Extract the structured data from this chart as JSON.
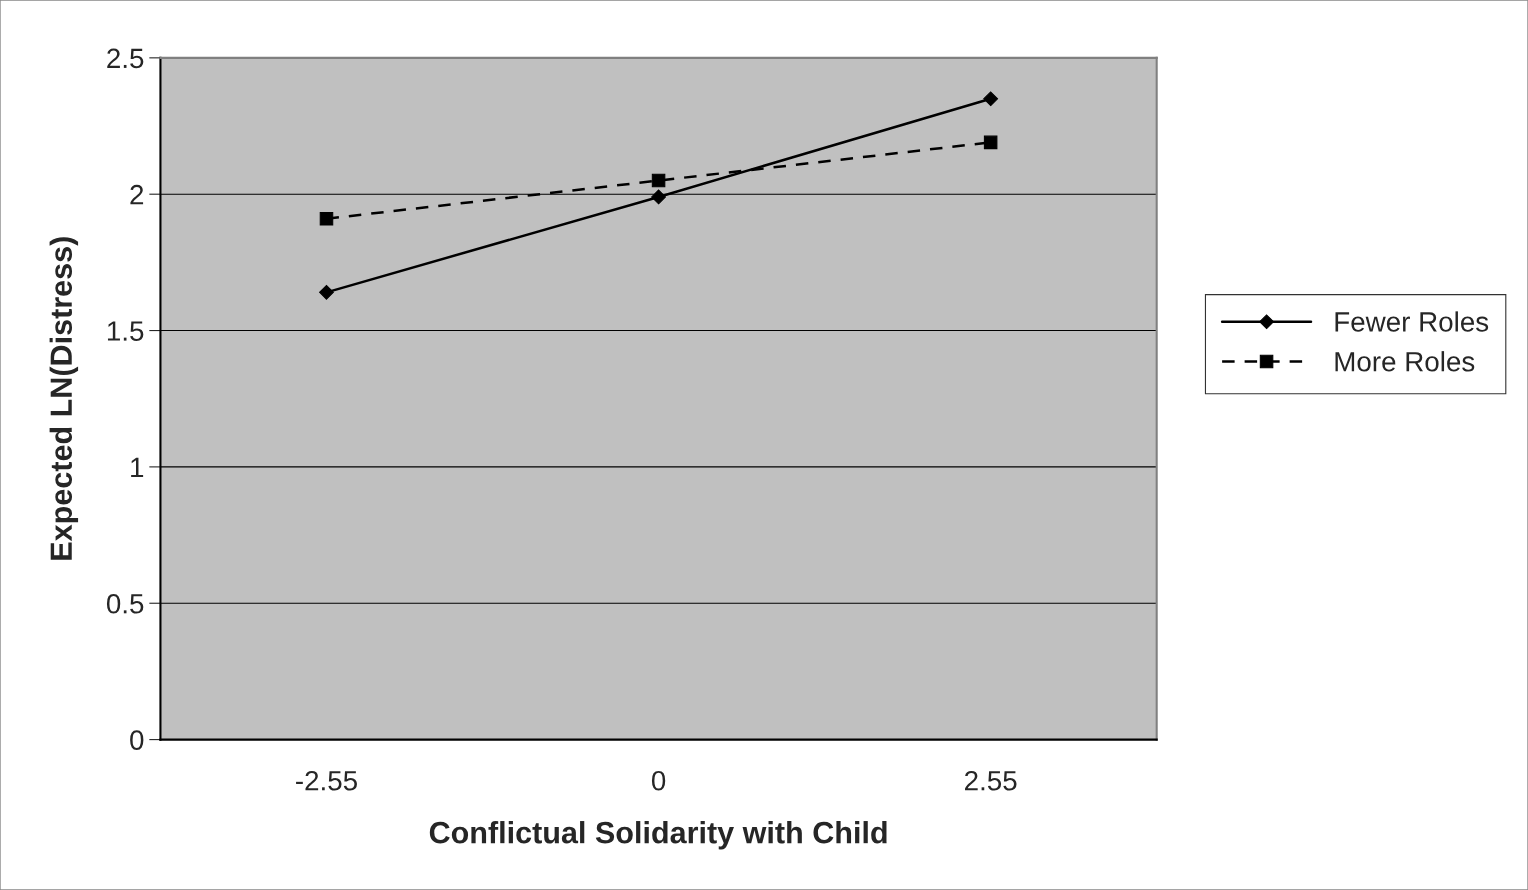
{
  "chart_data": {
    "type": "line",
    "xlabel": "Conflictual Solidarity with Child",
    "ylabel": "Expected LN(Distress)",
    "categories": [
      "-2.55",
      "0",
      "2.55"
    ],
    "series": [
      {
        "name": "Fewer Roles",
        "color": "#000000",
        "marker": "diamond",
        "line_style": "solid",
        "values": [
          1.64,
          1.99,
          2.35
        ]
      },
      {
        "name": "More Roles",
        "color": "#000000",
        "marker": "square",
        "line_style": "dashed",
        "values": [
          1.91,
          2.05,
          2.19
        ]
      }
    ],
    "ylim": [
      0,
      2.5
    ],
    "yticks": [
      0,
      0.5,
      1,
      1.5,
      2,
      2.5
    ],
    "grid": "y",
    "legend": "right"
  }
}
